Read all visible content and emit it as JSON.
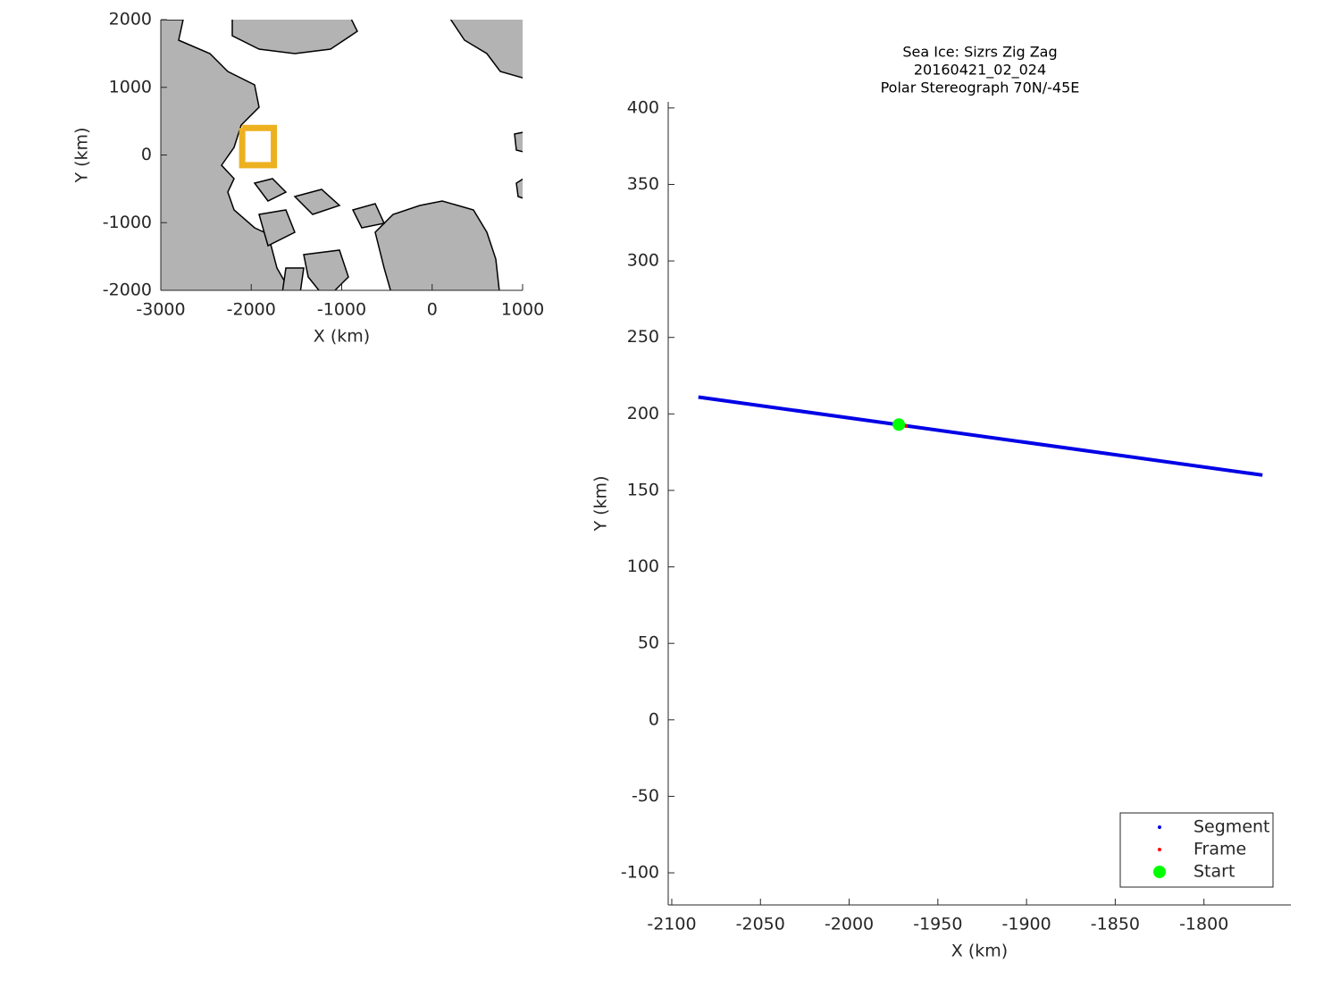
{
  "chart_data": [
    {
      "type": "map",
      "xlabel": "X (km)",
      "ylabel": "Y (km)",
      "xlim": [
        -3000,
        1000
      ],
      "ylim": [
        -2000,
        2000
      ],
      "xticks": [
        -3000,
        -2000,
        -1000,
        0,
        1000
      ],
      "yticks": [
        -2000,
        -1000,
        0,
        1000,
        2000
      ],
      "land_color": "#b3b3b3",
      "series": [
        {
          "color": "#edb120",
          "x": [
            -2100,
            -1750,
            -1750,
            -2100,
            -2100
          ],
          "y": [
            400,
            400,
            -150,
            -150,
            400
          ]
        }
      ]
    },
    {
      "type": "line",
      "title": [
        "Sea Ice: Sizrs Zig Zag",
        "20160421_02_024",
        "Polar Stereograph 70N/-45E"
      ],
      "xlabel": "X (km)",
      "ylabel": "Y (km)",
      "xlim": [
        -2102,
        -1751
      ],
      "ylim": [
        -121,
        404
      ],
      "xticks": [
        -2100,
        -2050,
        -2000,
        -1950,
        -1900,
        -1850,
        -1800
      ],
      "yticks": [
        -100,
        -50,
        0,
        50,
        100,
        150,
        200,
        250,
        300,
        350,
        400
      ],
      "legend": "lower right",
      "series": [
        {
          "name": "Segment",
          "color": "#0000e6",
          "x": [
            -2085,
            -1767
          ],
          "y": [
            211,
            160
          ]
        },
        {
          "name": "Frame",
          "color": "#ff0000",
          "x": [
            -1968
          ],
          "y": [
            192
          ]
        },
        {
          "name": "Start",
          "color": "#00ff00",
          "x": [
            -1972
          ],
          "y": [
            193
          ]
        }
      ]
    }
  ]
}
